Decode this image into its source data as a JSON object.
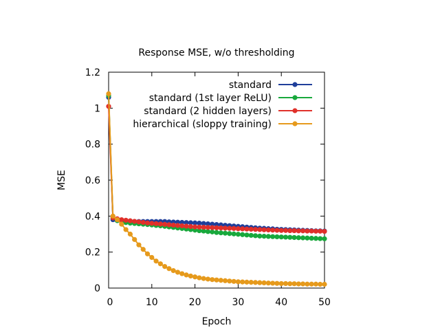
{
  "chart_data": {
    "type": "line",
    "title": "Response MSE, w/o thresholding",
    "xlabel": "Epoch",
    "ylabel": "MSE",
    "xlim": [
      0,
      50
    ],
    "ylim": [
      0,
      1.2
    ],
    "xticks": [
      0,
      10,
      20,
      30,
      40,
      50
    ],
    "yticks": [
      0,
      0.2,
      0.4,
      0.6,
      0.8,
      1,
      1.2
    ],
    "xtick_labels": [
      "0",
      "10",
      "20",
      "30",
      "40",
      "50"
    ],
    "ytick_labels": [
      "0",
      "0.2",
      "0.4",
      "0.6",
      "0.8",
      "1",
      "1.2"
    ],
    "grid": false,
    "legend_position": "top-right",
    "x": [
      0,
      1,
      2,
      3,
      4,
      5,
      6,
      7,
      8,
      9,
      10,
      11,
      12,
      13,
      14,
      15,
      16,
      17,
      18,
      19,
      20,
      21,
      22,
      23,
      24,
      25,
      26,
      27,
      28,
      29,
      30,
      31,
      32,
      33,
      34,
      35,
      36,
      37,
      38,
      39,
      40,
      41,
      42,
      43,
      44,
      45,
      46,
      47,
      48,
      49,
      50
    ],
    "series": [
      {
        "name": "standard",
        "color": "#1f3e9a",
        "values": [
          1.06,
          0.38,
          0.375,
          0.372,
          0.37,
          0.37,
          0.37,
          0.37,
          0.37,
          0.37,
          0.37,
          0.37,
          0.37,
          0.37,
          0.368,
          0.367,
          0.366,
          0.365,
          0.364,
          0.363,
          0.362,
          0.361,
          0.359,
          0.357,
          0.355,
          0.353,
          0.351,
          0.349,
          0.347,
          0.345,
          0.343,
          0.341,
          0.339,
          0.337,
          0.335,
          0.333,
          0.332,
          0.33,
          0.329,
          0.327,
          0.326,
          0.325,
          0.324,
          0.323,
          0.322,
          0.321,
          0.32,
          0.319,
          0.318,
          0.318,
          0.317
        ]
      },
      {
        "name": "standard (1st layer ReLU)",
        "color": "#18a83c",
        "values": [
          1.07,
          0.39,
          0.375,
          0.368,
          0.364,
          0.361,
          0.359,
          0.357,
          0.355,
          0.353,
          0.351,
          0.348,
          0.346,
          0.343,
          0.34,
          0.337,
          0.334,
          0.331,
          0.328,
          0.325,
          0.322,
          0.319,
          0.317,
          0.314,
          0.312,
          0.309,
          0.307,
          0.305,
          0.303,
          0.301,
          0.299,
          0.297,
          0.295,
          0.293,
          0.291,
          0.289,
          0.288,
          0.287,
          0.286,
          0.285,
          0.284,
          0.283,
          0.282,
          0.281,
          0.28,
          0.279,
          0.278,
          0.277,
          0.276,
          0.275,
          0.274
        ]
      },
      {
        "name": "standard (2 hidden layers)",
        "color": "#e0302a",
        "values": [
          1.01,
          0.39,
          0.385,
          0.38,
          0.377,
          0.374,
          0.371,
          0.368,
          0.365,
          0.362,
          0.36,
          0.358,
          0.356,
          0.354,
          0.352,
          0.35,
          0.348,
          0.346,
          0.344,
          0.342,
          0.34,
          0.339,
          0.338,
          0.337,
          0.336,
          0.335,
          0.334,
          0.333,
          0.332,
          0.331,
          0.33,
          0.329,
          0.328,
          0.327,
          0.326,
          0.325,
          0.324,
          0.323,
          0.322,
          0.321,
          0.32,
          0.32,
          0.319,
          0.319,
          0.318,
          0.318,
          0.317,
          0.317,
          0.316,
          0.316,
          0.315
        ]
      },
      {
        "name": "hierarchical (sloppy training)",
        "color": "#e69a1c",
        "values": [
          1.08,
          0.4,
          0.38,
          0.355,
          0.325,
          0.3,
          0.27,
          0.24,
          0.215,
          0.19,
          0.17,
          0.15,
          0.135,
          0.12,
          0.108,
          0.097,
          0.088,
          0.08,
          0.073,
          0.067,
          0.062,
          0.057,
          0.053,
          0.05,
          0.047,
          0.045,
          0.043,
          0.041,
          0.039,
          0.037,
          0.035,
          0.034,
          0.033,
          0.032,
          0.031,
          0.03,
          0.029,
          0.028,
          0.027,
          0.026,
          0.025,
          0.025,
          0.024,
          0.024,
          0.023,
          0.023,
          0.022,
          0.022,
          0.022,
          0.021,
          0.021
        ]
      }
    ]
  }
}
